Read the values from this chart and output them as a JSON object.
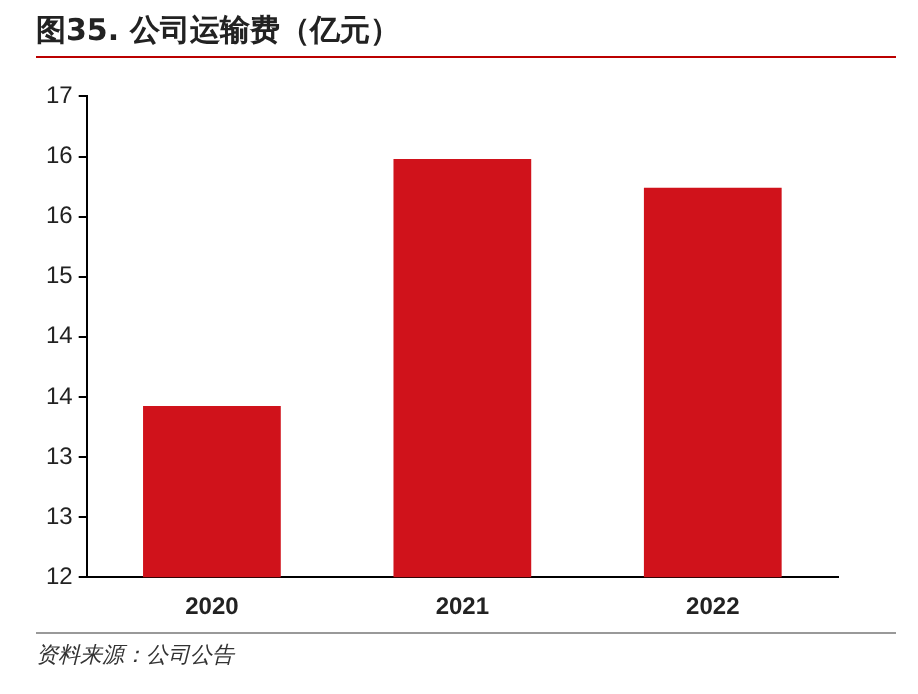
{
  "chart_data": {
    "type": "bar",
    "title": "图35. 公司运输费（亿元）",
    "categories": [
      "2020",
      "2021",
      "2022"
    ],
    "values": [
      13.78,
      16.35,
      16.05
    ],
    "color": "#d0121b",
    "ylim": [
      12,
      17
    ],
    "yticks": [
      12,
      {
        "value": 12.625,
        "label": "13"
      },
      {
        "value": 13.25,
        "label": "13"
      },
      {
        "value": 13.875,
        "label": "14"
      },
      {
        "value": 14.5,
        "label": "14"
      },
      {
        "value": 15.125,
        "label": "15"
      },
      {
        "value": 15.75,
        "label": "16"
      },
      {
        "value": 16.375,
        "label": "16"
      },
      17
    ],
    "grid": false,
    "legend": false,
    "annotations": [
      "资料来源：公司公告"
    ]
  }
}
